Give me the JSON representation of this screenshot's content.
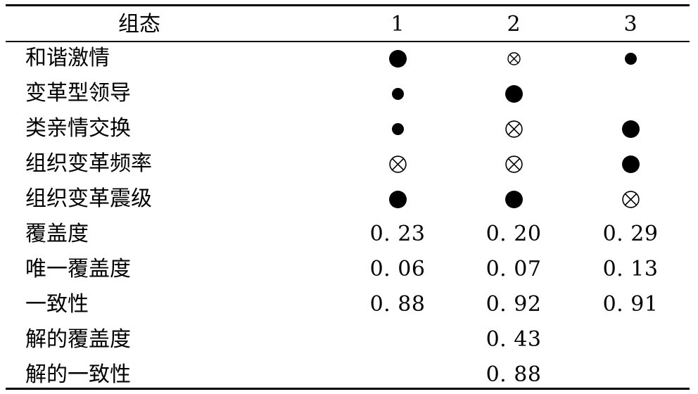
{
  "header": {
    "label": "组态",
    "cols": [
      "1",
      "2",
      "3"
    ]
  },
  "condition_rows": [
    {
      "label": "和谐激情",
      "cells": [
        "core-present",
        "peripheral-absent",
        "peripheral-present"
      ]
    },
    {
      "label": "变革型领导",
      "cells": [
        "peripheral-present",
        "core-present",
        ""
      ]
    },
    {
      "label": "类亲情交换",
      "cells": [
        "peripheral-present",
        "core-absent",
        "core-present"
      ]
    },
    {
      "label": "组织变革频率",
      "cells": [
        "core-absent",
        "core-absent",
        "core-present"
      ]
    },
    {
      "label": "组织变革震级",
      "cells": [
        "core-present",
        "core-present",
        "core-absent"
      ]
    }
  ],
  "metric_rows": [
    {
      "label": "覆盖度",
      "values": [
        "0. 23",
        "0. 20",
        "0. 29"
      ]
    },
    {
      "label": "唯一覆盖度",
      "values": [
        "0. 06",
        "0. 07",
        "0. 13"
      ]
    },
    {
      "label": "一致性",
      "values": [
        "0. 88",
        "0. 92",
        "0. 91"
      ]
    }
  ],
  "solution_rows": [
    {
      "label": "解的覆盖度",
      "value": "0. 43"
    },
    {
      "label": "解的一致性",
      "value": "0. 88"
    }
  ],
  "symbol_legend": {
    "core-present": "filled-circle-large-icon",
    "peripheral-present": "filled-circle-small-icon",
    "core-absent": "circled-x-large-icon",
    "peripheral-absent": "circled-x-small-icon"
  },
  "colors": {
    "text": "#000000",
    "background": "#ffffff",
    "rule": "#000000"
  }
}
